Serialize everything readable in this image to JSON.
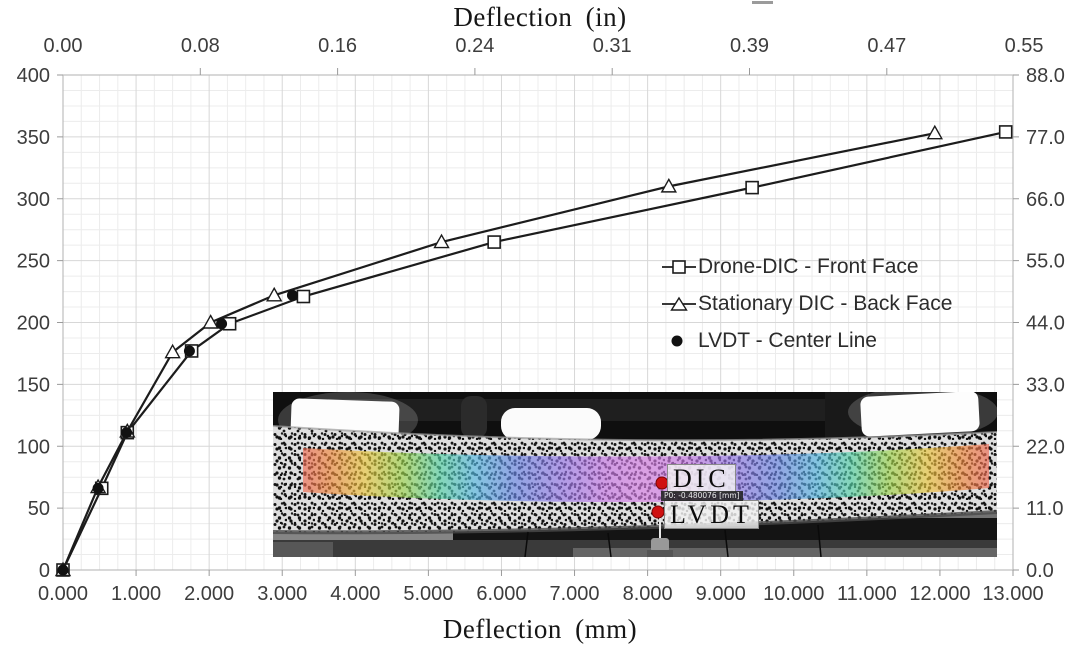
{
  "chart_data": {
    "type": "line",
    "title": "",
    "x_axis_bottom": {
      "label": "Deflection (mm)",
      "min": 0,
      "max": 13,
      "major_step": 1.0,
      "minor_step": 0.25,
      "tick_labels": [
        "0.000",
        "1.000",
        "2.000",
        "3.000",
        "4.000",
        "5.000",
        "6.000",
        "7.000",
        "8.000",
        "9.000",
        "10.000",
        "11.000",
        "12.000",
        "13.000"
      ]
    },
    "x_axis_top": {
      "label": "Deflection (in)",
      "tick_labels": [
        "0.00",
        "0.08",
        "0.16",
        "0.24",
        "0.31",
        "0.39",
        "0.47",
        "0.55"
      ]
    },
    "y_axis_left": {
      "label": "",
      "min": 0,
      "max": 400,
      "major_step": 50,
      "minor_step": 12.5,
      "tick_labels": [
        "0",
        "50",
        "100",
        "150",
        "200",
        "250",
        "300",
        "350",
        "400"
      ]
    },
    "y_axis_right": {
      "label": "",
      "tick_labels": [
        "0.0",
        "11.0",
        "22.0",
        "33.0",
        "44.0",
        "55.0",
        "66.0",
        "77.0",
        "88.0"
      ]
    },
    "grid": {
      "shown": true,
      "minor": true
    },
    "legend": {
      "position": "inside-right-middle",
      "entries": [
        "Drone-DIC - Front Face",
        "Stationary DIC - Back Face",
        "LVDT - Center Line"
      ]
    },
    "series": [
      {
        "name": "Drone-DIC - Front Face",
        "marker": "square",
        "line": true,
        "points": [
          [
            0,
            0
          ],
          [
            0.53,
            66
          ],
          [
            0.88,
            111
          ],
          [
            1.76,
            177
          ],
          [
            2.28,
            199
          ],
          [
            3.29,
            221
          ],
          [
            5.9,
            265
          ],
          [
            9.43,
            309
          ],
          [
            12.9,
            354
          ]
        ]
      },
      {
        "name": "Stationary DIC - Back Face",
        "marker": "triangle",
        "line": true,
        "points": [
          [
            0,
            0
          ],
          [
            0.48,
            67
          ],
          [
            0.88,
            112
          ],
          [
            1.5,
            176
          ],
          [
            2.02,
            200
          ],
          [
            2.89,
            222
          ],
          [
            5.18,
            265
          ],
          [
            8.29,
            310
          ],
          [
            11.93,
            353
          ]
        ]
      },
      {
        "name": "LVDT - Center Line",
        "marker": "dot",
        "line": false,
        "points": [
          [
            0,
            0
          ],
          [
            0.48,
            66
          ],
          [
            0.87,
            111
          ],
          [
            1.73,
            177
          ],
          [
            2.17,
            199
          ],
          [
            3.14,
            222
          ]
        ]
      }
    ],
    "colors": {
      "series": "#1c1c1c",
      "grid_major": "#d7d7d7",
      "grid_minor": "#ececec",
      "axis_border": "#bdbdbd",
      "tick_text": "#3d3d3d"
    }
  },
  "inset": {
    "labels": {
      "dic": "DIC",
      "lvdt": "LVDT",
      "annotation": "P0: -0.480076 [mm]"
    },
    "marker_color": "#cf1111"
  }
}
